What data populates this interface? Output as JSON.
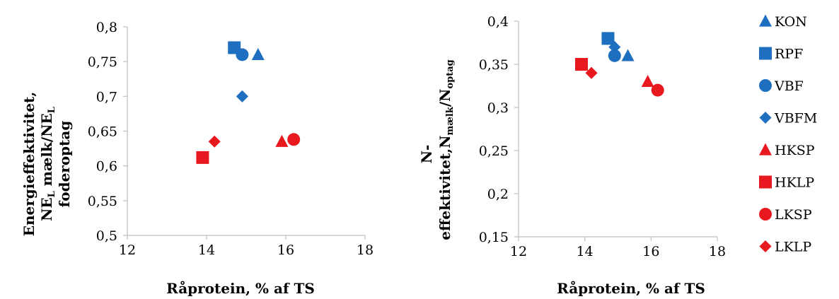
{
  "colors": {
    "blue": "#1F6FC0",
    "red": "#E8191E",
    "axis": "#BFBFBF"
  },
  "legend": [
    {
      "label": "KON",
      "marker": "triangle",
      "color": "blue"
    },
    {
      "label": "RPF",
      "marker": "square",
      "color": "blue"
    },
    {
      "label": "VBF",
      "marker": "circle",
      "color": "blue"
    },
    {
      "label": "VBFM",
      "marker": "diamond",
      "color": "blue"
    },
    {
      "label": "HKSP",
      "marker": "triangle",
      "color": "red"
    },
    {
      "label": "HKLP",
      "marker": "square",
      "color": "red"
    },
    {
      "label": "LKSP",
      "marker": "circle",
      "color": "red"
    },
    {
      "label": "LKLP",
      "marker": "diamond",
      "color": "red"
    }
  ],
  "chart_data": [
    {
      "type": "scatter",
      "xlabel": "Råprotein, % af TS",
      "ylabel_lines": [
        "Energieffektivitet,",
        "NE_L mælk/NE_L",
        "foderoptag"
      ],
      "xlim": [
        12,
        18
      ],
      "ylim": [
        0.5,
        0.8
      ],
      "xticks": [
        "12",
        "14",
        "16",
        "18"
      ],
      "xtick_values": [
        12,
        14,
        16,
        18
      ],
      "yticks": [
        "0,5",
        "0,55",
        "0,6",
        "0,65",
        "0,7",
        "0,75",
        "0,8"
      ],
      "ytick_values": [
        0.5,
        0.55,
        0.6,
        0.65,
        0.7,
        0.75,
        0.8
      ],
      "series": [
        {
          "name": "KON",
          "x": 15.3,
          "y": 0.76
        },
        {
          "name": "RPF",
          "x": 14.7,
          "y": 0.77
        },
        {
          "name": "VBF",
          "x": 14.9,
          "y": 0.76
        },
        {
          "name": "VBFM",
          "x": 14.9,
          "y": 0.7
        },
        {
          "name": "HKSP",
          "x": 15.9,
          "y": 0.635
        },
        {
          "name": "HKLP",
          "x": 13.9,
          "y": 0.612
        },
        {
          "name": "LKSP",
          "x": 16.2,
          "y": 0.638
        },
        {
          "name": "LKLP",
          "x": 14.2,
          "y": 0.635
        }
      ]
    },
    {
      "type": "scatter",
      "xlabel": "Råprotein, % af TS",
      "ylabel_lines": [
        "N-",
        "effektivitet,N_mælk/N_optag"
      ],
      "xlim": [
        12,
        18
      ],
      "ylim": [
        0.15,
        0.4
      ],
      "xticks": [
        "12",
        "14",
        "16",
        "18"
      ],
      "xtick_values": [
        12,
        14,
        16,
        18
      ],
      "yticks": [
        "0,15",
        "0,2",
        "0,25",
        "0,3",
        "0,35",
        "0,4"
      ],
      "ytick_values": [
        0.15,
        0.2,
        0.25,
        0.3,
        0.35,
        0.4
      ],
      "series": [
        {
          "name": "KON",
          "x": 15.3,
          "y": 0.36
        },
        {
          "name": "RPF",
          "x": 14.7,
          "y": 0.38
        },
        {
          "name": "VBF",
          "x": 14.9,
          "y": 0.36
        },
        {
          "name": "VBFM",
          "x": 14.9,
          "y": 0.37
        },
        {
          "name": "HKSP",
          "x": 15.9,
          "y": 0.33
        },
        {
          "name": "HKLP",
          "x": 13.9,
          "y": 0.35
        },
        {
          "name": "LKSP",
          "x": 16.2,
          "y": 0.32
        },
        {
          "name": "LKLP",
          "x": 14.2,
          "y": 0.34
        }
      ]
    }
  ]
}
